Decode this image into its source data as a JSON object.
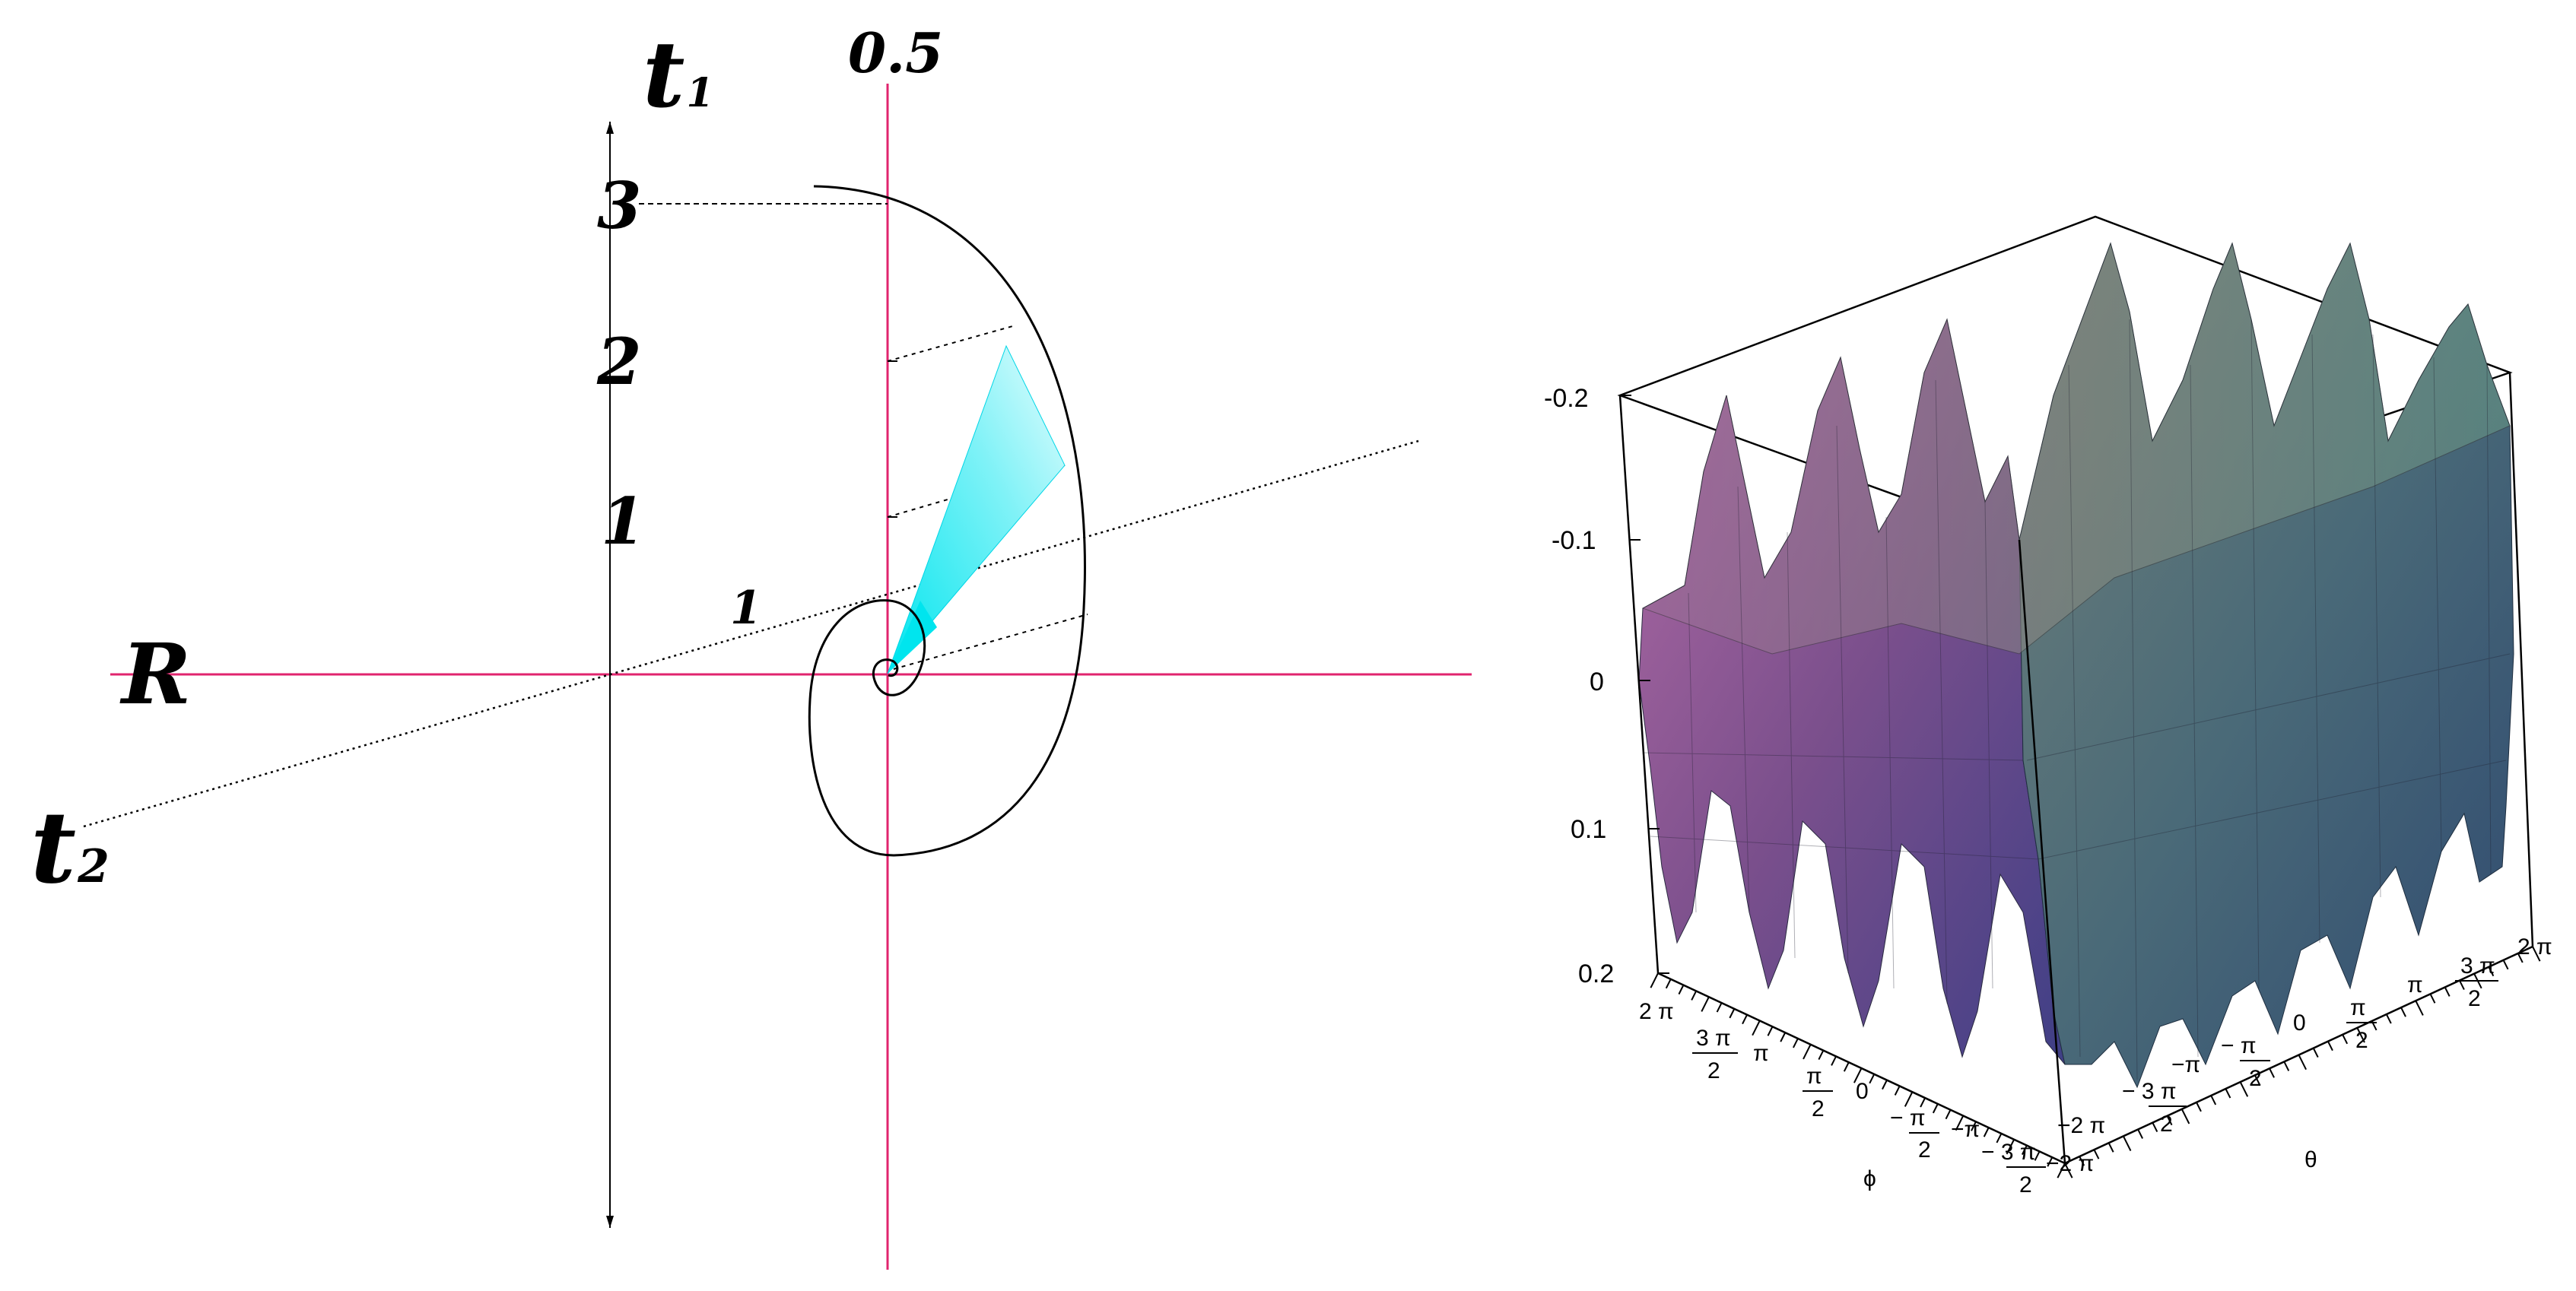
{
  "left_diagram": {
    "labels": {
      "t1_base": "t",
      "t1_sub": "1",
      "t2_base": "t",
      "t2_sub": "2",
      "r_axis": "R",
      "half": "0.5",
      "one": "1"
    },
    "t1_ticks": [
      "1",
      "2",
      "3"
    ],
    "colors": {
      "axis_main": "#e0246e",
      "fan": "#00e5ee",
      "curve": "#000000"
    }
  },
  "right_plot": {
    "z_ticks": [
      "-0.2",
      "-0.1",
      "0",
      "0.1",
      "0.2"
    ],
    "phi_label": "ϕ",
    "theta_label": "θ",
    "phi_ticks": [
      {
        "num": "2 π",
        "den": ""
      },
      {
        "num": "3 π",
        "den": "2"
      },
      {
        "num": "π",
        "den": ""
      },
      {
        "num": "π",
        "den": "2"
      },
      {
        "num": "0",
        "den": ""
      },
      {
        "num": "− π",
        "den": "2"
      },
      {
        "num": "−π",
        "den": ""
      },
      {
        "num": "− 3 π",
        "den": "2"
      },
      {
        "num": "−2 π",
        "den": ""
      }
    ],
    "theta_ticks": [
      {
        "num": "−2 π",
        "den": ""
      },
      {
        "num": "− 3 π",
        "den": "2"
      },
      {
        "num": "−π",
        "den": ""
      },
      {
        "num": "− π",
        "den": "2"
      },
      {
        "num": "0",
        "den": ""
      },
      {
        "num": "π",
        "den": "2"
      },
      {
        "num": "π",
        "den": ""
      },
      {
        "num": "3 π",
        "den": "2"
      },
      {
        "num": "2 π",
        "den": ""
      }
    ]
  }
}
